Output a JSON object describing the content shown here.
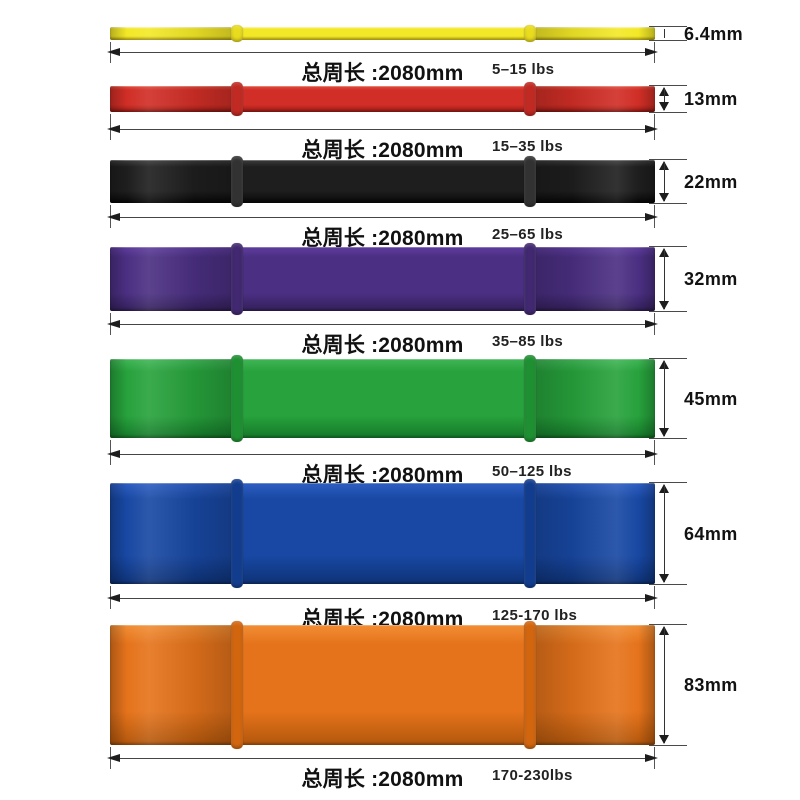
{
  "dimension_color": "#3a3a3a",
  "text_color": "#111111",
  "background_color": "#ffffff",
  "bands": [
    {
      "id": "yellow",
      "color": "#f3e827",
      "color_light": "#f9f284",
      "color_dark": "#d9c514",
      "seam_color": "#e9dc1e",
      "width_label": "6.4mm",
      "circumference_label": "总周长 :2080mm",
      "resistance_label": "5–15 lbs"
    },
    {
      "id": "red",
      "color": "#d02e26",
      "color_light": "#e14d3e",
      "color_dark": "#9e1c16",
      "seam_color": "#c12a22",
      "width_label": "13mm",
      "circumference_label": "总周长 :2080mm",
      "resistance_label": "15–35 lbs"
    },
    {
      "id": "black",
      "color": "#1e1e1e",
      "color_light": "#3c3c3c",
      "color_dark": "#070707",
      "seam_color": "#323232",
      "width_label": "22mm",
      "circumference_label": "总周长 :2080mm",
      "resistance_label": "25–65 lbs"
    },
    {
      "id": "purple",
      "color": "#4b2f82",
      "color_light": "#5e3d9e",
      "color_dark": "#33205a",
      "seam_color": "#412870",
      "width_label": "32mm",
      "circumference_label": "总周长 :2080mm",
      "resistance_label": "35–85 lbs"
    },
    {
      "id": "green",
      "color": "#27a23c",
      "color_light": "#40b656",
      "color_dark": "#157829",
      "seam_color": "#1f9032",
      "width_label": "45mm",
      "circumference_label": "总周长 :2080mm",
      "resistance_label": "50–125 lbs"
    },
    {
      "id": "blue",
      "color": "#1848a3",
      "color_light": "#2c5ec2",
      "color_dark": "#0e3276",
      "seam_color": "#123d8f",
      "width_label": "64mm",
      "circumference_label": "总周长 :2080mm",
      "resistance_label": "125-170 lbs"
    },
    {
      "id": "orange",
      "color": "#e5731b",
      "color_light": "#f18e35",
      "color_dark": "#b2570c",
      "seam_color": "#d2660f",
      "width_label": "83mm",
      "circumference_label": "总周长 :2080mm",
      "resistance_label": "170-230lbs"
    }
  ]
}
